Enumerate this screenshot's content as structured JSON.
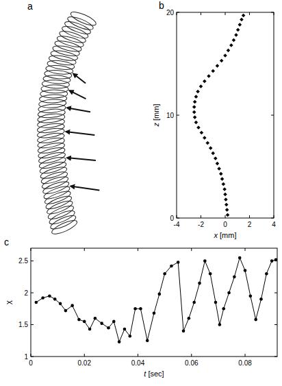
{
  "figure_a": {
    "label": "a"
  },
  "chart_data": [
    {
      "type": "scatter",
      "title": "b",
      "xlabel": "x [mm]",
      "ylabel": "z [mm]",
      "x": [
        0.2,
        0.15,
        0.1,
        0.05,
        0,
        -0.05,
        -0.15,
        -0.25,
        -0.35,
        -0.5,
        -0.65,
        -0.8,
        -1.0,
        -1.2,
        -1.45,
        -1.7,
        -1.95,
        -2.2,
        -2.4,
        -2.5,
        -2.55,
        -2.55,
        -2.5,
        -2.4,
        -2.25,
        -2.0,
        -1.7,
        -1.35,
        -1.0,
        -0.65,
        -0.3,
        0,
        0.25,
        0.5,
        0.7,
        0.9,
        1.05,
        1.2,
        1.35,
        1.5
      ],
      "values": [
        0.3,
        0.8,
        1.3,
        1.8,
        2.3,
        2.8,
        3.3,
        3.8,
        4.3,
        4.8,
        5.3,
        5.8,
        6.3,
        6.8,
        7.3,
        7.8,
        8.3,
        8.8,
        9.3,
        9.8,
        10.3,
        10.8,
        11.3,
        11.8,
        12.3,
        12.8,
        13.3,
        13.8,
        14.3,
        14.8,
        15.3,
        15.8,
        16.3,
        16.8,
        17.3,
        17.8,
        18.3,
        18.8,
        19.3,
        19.7
      ],
      "xlim": [
        -4,
        4
      ],
      "xticks": [
        -4,
        -2,
        0,
        2,
        4
      ],
      "ylim": [
        0,
        20
      ],
      "yticks": [
        0,
        10,
        20
      ],
      "marker": "diamond",
      "color": "#000000"
    },
    {
      "type": "line",
      "title": "c",
      "xlabel": "t [sec]",
      "ylabel": "χ",
      "x": [
        0.002,
        0.0045,
        0.007,
        0.009,
        0.011,
        0.013,
        0.0155,
        0.018,
        0.02,
        0.022,
        0.024,
        0.0265,
        0.029,
        0.031,
        0.033,
        0.035,
        0.037,
        0.039,
        0.041,
        0.0435,
        0.046,
        0.048,
        0.05,
        0.0525,
        0.055,
        0.057,
        0.059,
        0.061,
        0.063,
        0.065,
        0.067,
        0.069,
        0.0705,
        0.072,
        0.074,
        0.076,
        0.078,
        0.08,
        0.082,
        0.084,
        0.086,
        0.088,
        0.09,
        0.0915
      ],
      "values": [
        1.85,
        1.92,
        1.95,
        1.9,
        1.83,
        1.72,
        1.8,
        1.58,
        1.55,
        1.43,
        1.6,
        1.52,
        1.45,
        1.55,
        1.23,
        1.43,
        1.32,
        1.75,
        1.75,
        1.25,
        1.68,
        1.98,
        2.3,
        2.42,
        2.48,
        1.4,
        1.6,
        1.85,
        2.15,
        2.5,
        2.3,
        1.85,
        1.5,
        1.75,
        2.0,
        2.25,
        2.55,
        2.35,
        1.95,
        1.58,
        1.9,
        2.3,
        2.5,
        2.52
      ],
      "xlim": [
        0,
        0.092
      ],
      "xticks": [
        0,
        0.02,
        0.04,
        0.06,
        0.08
      ],
      "ylim": [
        1,
        2.7
      ],
      "yticks": [
        1,
        1.5,
        2,
        2.5
      ],
      "marker": "circle",
      "line_style": "solid",
      "color": "#000000"
    }
  ]
}
